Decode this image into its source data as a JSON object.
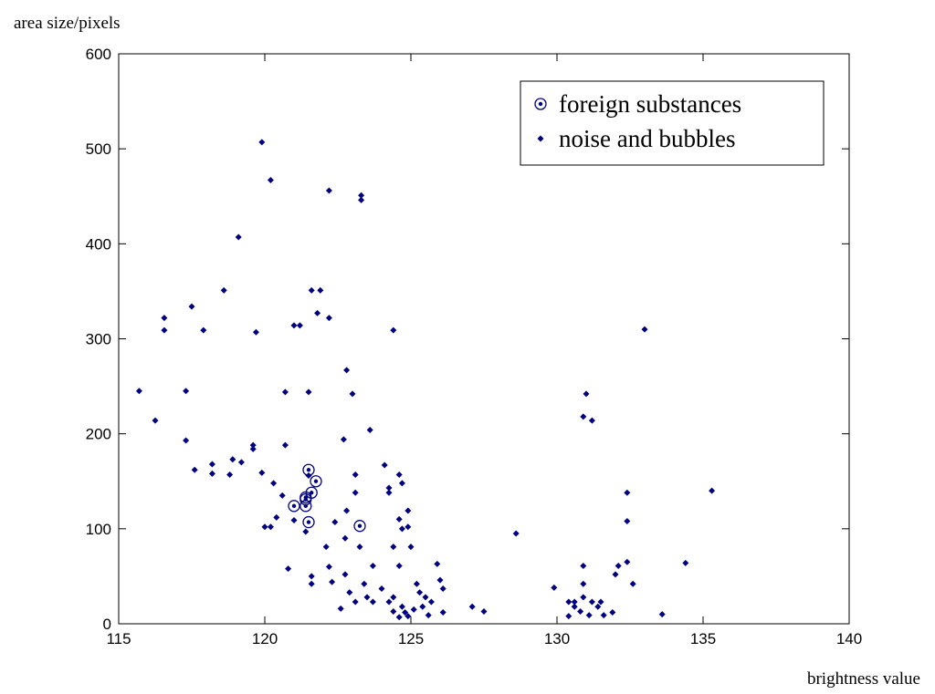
{
  "chart_data": {
    "type": "scatter",
    "y_label": "area size/pixels",
    "x_label": "brightness value",
    "xlim": [
      115,
      140
    ],
    "xticks": [
      115,
      120,
      125,
      130,
      135,
      140
    ],
    "ylim": [
      0,
      600
    ],
    "yticks": [
      0,
      100,
      200,
      300,
      400,
      500,
      600
    ],
    "legend_position": "upper right",
    "series": [
      {
        "name": "foreign substances",
        "color": "#000080",
        "marker": "circle",
        "x": [
          121.0,
          121.4,
          121.5,
          121.75,
          121.6,
          121.4,
          121.5,
          123.25,
          121.4
        ],
        "values": [
          124,
          124,
          162,
          150,
          138,
          133,
          107,
          103,
          131
        ]
      },
      {
        "name": "noise and bubbles",
        "color": "#000080",
        "marker": "point",
        "x": [
          115.7,
          116.25,
          116.56,
          116.56,
          117.3,
          117.3,
          117.5,
          117.6,
          117.9,
          118.2,
          118.2,
          118.6,
          118.8,
          118.9,
          119.1,
          119.2,
          119.6,
          119.6,
          119.7,
          119.9,
          119.9,
          120.0,
          120.2,
          120.2,
          120.3,
          120.4,
          120.6,
          120.7,
          120.7,
          120.8,
          121.0,
          121.2,
          121.0,
          121.4,
          121.5,
          121.6,
          121.9,
          121.5,
          121.8,
          122.2,
          122.2,
          121.6,
          121.6,
          122.4,
          122.1,
          122.2,
          122.3,
          122.7,
          122.8,
          123.0,
          123.3,
          123.3,
          123.6,
          124.4,
          122.6,
          122.75,
          122.8,
          123.1,
          123.1,
          123.25,
          122.75,
          122.9,
          123.1,
          123.4,
          123.5,
          123.7,
          123.7,
          124.0,
          124.1,
          124.25,
          124.25,
          124.4,
          124.6,
          124.7,
          124.7,
          124.6,
          124.4,
          124.7,
          124.9,
          124.9,
          124.6,
          125.0,
          125.2,
          125.3,
          125.4,
          125.6,
          125.9,
          126.0,
          126.1,
          126.1,
          127.1,
          127.5,
          124.25,
          124.4,
          124.8,
          125.1,
          124.9,
          124.6,
          125.5,
          125.7,
          128.6,
          129.9,
          130.4,
          130.4,
          130.6,
          130.8,
          130.9,
          130.9,
          130.9,
          131.0,
          131.2,
          130.9,
          131.2,
          131.4,
          131.5,
          131.1,
          131.6,
          132.0,
          132.1,
          132.4,
          132.4,
          132.4,
          132.6,
          133.0,
          133.6,
          134.4,
          135.3,
          131.9,
          130.6
        ],
        "values": [
          245,
          214,
          322,
          309,
          245,
          193,
          334,
          162,
          309,
          168,
          158,
          351,
          157,
          173,
          407,
          170,
          188,
          184,
          307,
          507,
          159,
          102,
          102,
          467,
          148,
          112,
          135,
          244,
          188,
          58,
          314,
          314,
          109,
          97,
          244,
          351,
          351,
          156,
          327,
          322,
          456,
          50,
          42,
          107,
          81,
          60,
          44,
          194,
          267,
          242,
          451,
          446,
          204,
          309,
          16,
          90,
          119,
          138,
          157,
          81,
          52,
          33,
          23,
          42,
          28,
          61,
          23,
          37,
          167,
          143,
          138,
          81,
          157,
          148,
          100,
          61,
          28,
          18,
          119,
          102,
          110,
          81,
          42,
          33,
          18,
          9,
          63,
          46,
          37,
          12,
          18,
          13,
          23,
          13,
          12,
          15,
          8,
          7,
          28,
          23,
          95,
          38,
          23,
          8,
          18,
          13,
          61,
          42,
          218,
          242,
          214,
          28,
          23,
          18,
          23,
          9,
          9,
          52,
          61,
          108,
          138,
          65,
          42,
          310,
          10,
          64,
          140,
          12,
          23
        ]
      }
    ]
  }
}
